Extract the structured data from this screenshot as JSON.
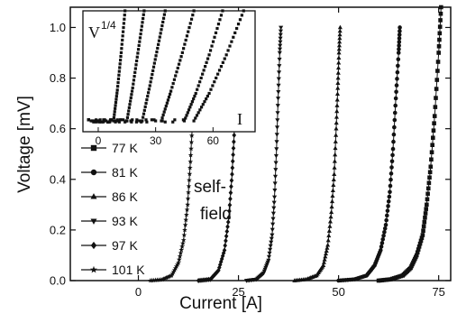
{
  "chart_data": {
    "type": "line",
    "xlabel": "Current [A]",
    "ylabel": "Voltage [mV]",
    "xlim": [
      -17,
      78
    ],
    "ylim": [
      0.0,
      1.08
    ],
    "xticks": [
      0,
      25,
      50,
      75
    ],
    "yticks": [
      0.0,
      0.2,
      0.4,
      0.6,
      0.8,
      1.0
    ],
    "annotation": "self-\nfield",
    "series": [
      {
        "name": "77 K",
        "marker": "square",
        "x": [
          60,
          63,
          66,
          68,
          69.5,
          71,
          72,
          73,
          74,
          75,
          75.6
        ],
        "y": [
          0.0,
          0.005,
          0.02,
          0.05,
          0.1,
          0.18,
          0.3,
          0.45,
          0.65,
          0.9,
          1.08
        ]
      },
      {
        "name": "81 K",
        "marker": "circle",
        "x": [
          50,
          54,
          57,
          59,
          60.5,
          61.8,
          62.8,
          63.6,
          64.3,
          65.0,
          65.3
        ],
        "y": [
          0.0,
          0.005,
          0.02,
          0.06,
          0.12,
          0.22,
          0.35,
          0.52,
          0.72,
          0.9,
          1.0
        ]
      },
      {
        "name": "86 K",
        "marker": "triangle-up",
        "x": [
          39,
          42,
          44.5,
          46.2,
          47.3,
          48.2,
          48.9,
          49.4,
          49.8,
          50.1,
          50.4
        ],
        "y": [
          0.0,
          0.005,
          0.02,
          0.06,
          0.14,
          0.27,
          0.42,
          0.6,
          0.76,
          0.9,
          1.0
        ]
      },
      {
        "name": "93 K",
        "marker": "triangle-down",
        "x": [
          27,
          29.5,
          31.3,
          32.5,
          33.4,
          34.0,
          34.5,
          34.9,
          35.3,
          35.6
        ],
        "y": [
          0.0,
          0.005,
          0.03,
          0.08,
          0.18,
          0.33,
          0.52,
          0.72,
          0.9,
          1.0
        ]
      },
      {
        "name": "97 K",
        "marker": "diamond",
        "x": [
          15,
          18,
          20,
          21.5,
          22.6,
          23.4,
          24.0,
          24.4,
          24.8,
          25.0
        ],
        "y": [
          0.0,
          0.005,
          0.04,
          0.12,
          0.25,
          0.42,
          0.6,
          0.78,
          0.93,
          1.0
        ]
      },
      {
        "name": "101 K",
        "marker": "star",
        "x": [
          3,
          6,
          8.3,
          10,
          11.3,
          12.3,
          13.0,
          13.6,
          14.0,
          14.4,
          14.7
        ],
        "y": [
          0.0,
          0.004,
          0.02,
          0.07,
          0.16,
          0.3,
          0.47,
          0.65,
          0.8,
          0.92,
          0.98
        ]
      }
    ],
    "inset": {
      "ylabel": "V^1/4",
      "xlabel": "I",
      "xlim": [
        -8,
        82
      ],
      "xticks": [
        0,
        30,
        60
      ],
      "series": [
        {
          "name": "101 K",
          "x": [
            -5,
            8,
            10,
            12,
            14
          ],
          "y": [
            0.0,
            0.0,
            0.28,
            0.62,
            1.0
          ]
        },
        {
          "name": "97 K",
          "x": [
            -5,
            15,
            18,
            21,
            24
          ],
          "y": [
            0.0,
            0.0,
            0.3,
            0.65,
            1.0
          ]
        },
        {
          "name": "93 K",
          "x": [
            -5,
            23,
            27,
            31,
            35
          ],
          "y": [
            0.0,
            0.0,
            0.32,
            0.66,
            1.0
          ]
        },
        {
          "name": "86 K",
          "x": [
            -5,
            33,
            38,
            44,
            50
          ],
          "y": [
            0.0,
            0.0,
            0.27,
            0.62,
            1.0
          ]
        },
        {
          "name": "81 K",
          "x": [
            -5,
            45,
            51,
            58,
            65
          ],
          "y": [
            0.0,
            0.0,
            0.25,
            0.6,
            1.0
          ]
        },
        {
          "name": "77 K",
          "x": [
            -5,
            50,
            58,
            67,
            76
          ],
          "y": [
            0.0,
            0.0,
            0.25,
            0.6,
            1.0
          ]
        }
      ]
    }
  }
}
